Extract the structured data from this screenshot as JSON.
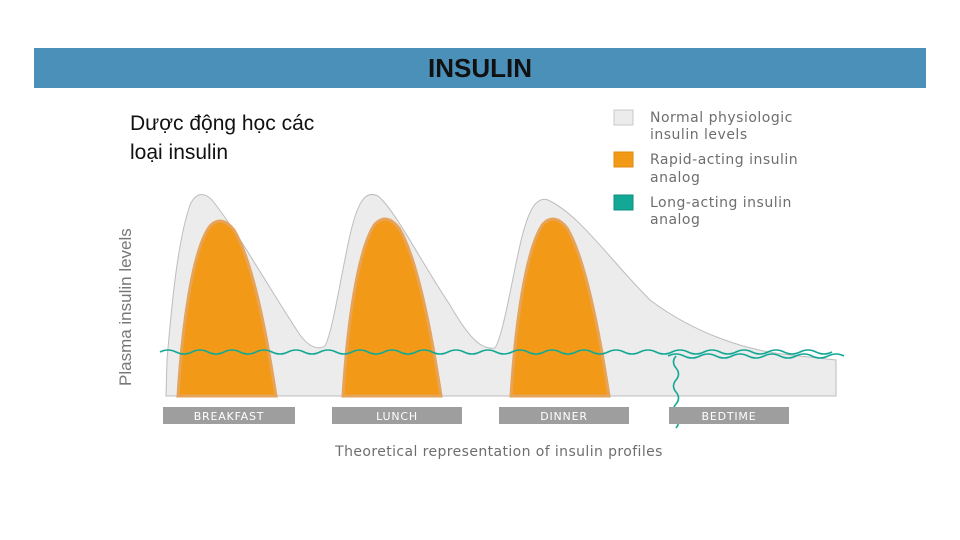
{
  "header": {
    "title": "INSULIN"
  },
  "subtitle": {
    "line1": "Dược động học các",
    "line2": "loại insulin"
  },
  "diagram": {
    "y_axis_label": "Plasma insulin levels",
    "caption": "Theoretical representation of insulin profiles",
    "meals": [
      "BREAKFAST",
      "LUNCH",
      "DINNER",
      "BEDTIME"
    ],
    "legend": [
      {
        "line1": "Normal physiologic",
        "line2": "insulin levels",
        "color": "#ececec",
        "border": "#c8c8c8"
      },
      {
        "line1": "Rapid-acting insulin",
        "line2": "analog",
        "color": "#f29a17",
        "border": "#e08a10"
      },
      {
        "line1": "Long-acting insulin",
        "line2": "analog",
        "color": "#13a896",
        "border": "#0e8f80"
      }
    ],
    "colors": {
      "normal": "#ececec",
      "rapid": "#f29a17",
      "long": "#13a896",
      "bar": "#9e9e9e"
    }
  }
}
